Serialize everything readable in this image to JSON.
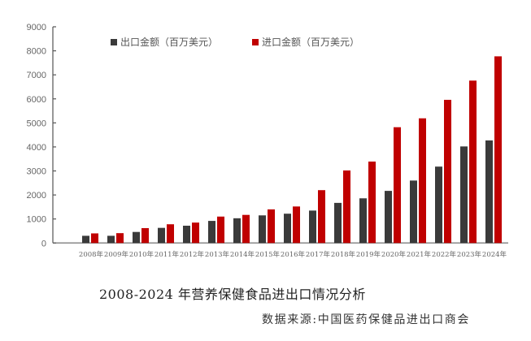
{
  "chart_data": {
    "type": "bar",
    "title": "2008-2024 年营养保健食品进出口情况分析",
    "source": "数据来源:中国医药保健品进出口商会",
    "categories": [
      "2008年",
      "2009年",
      "2010年",
      "2011年",
      "2012年",
      "2013年",
      "2014年",
      "2015年",
      "2016年",
      "2017年",
      "2018年",
      "2019年",
      "2020年",
      "2021年",
      "2022年",
      "2023年",
      "2024年"
    ],
    "series": [
      {
        "name": "出口金额（百万美元）",
        "color": "#3a3a3a",
        "values": [
          300,
          300,
          460,
          630,
          720,
          920,
          1030,
          1150,
          1220,
          1350,
          1670,
          1860,
          2170,
          2600,
          3180,
          4020,
          4270
        ]
      },
      {
        "name": "进口金额（百万美元）",
        "color": "#c00000",
        "values": [
          400,
          410,
          620,
          780,
          850,
          1100,
          1170,
          1400,
          1520,
          2200,
          3020,
          3390,
          4820,
          5190,
          5960,
          6760,
          7770
        ]
      }
    ],
    "ylim": [
      0,
      9000
    ],
    "yticks": [
      0,
      1000,
      2000,
      3000,
      4000,
      5000,
      6000,
      7000,
      8000,
      9000
    ],
    "grid": false,
    "legend": "top"
  }
}
